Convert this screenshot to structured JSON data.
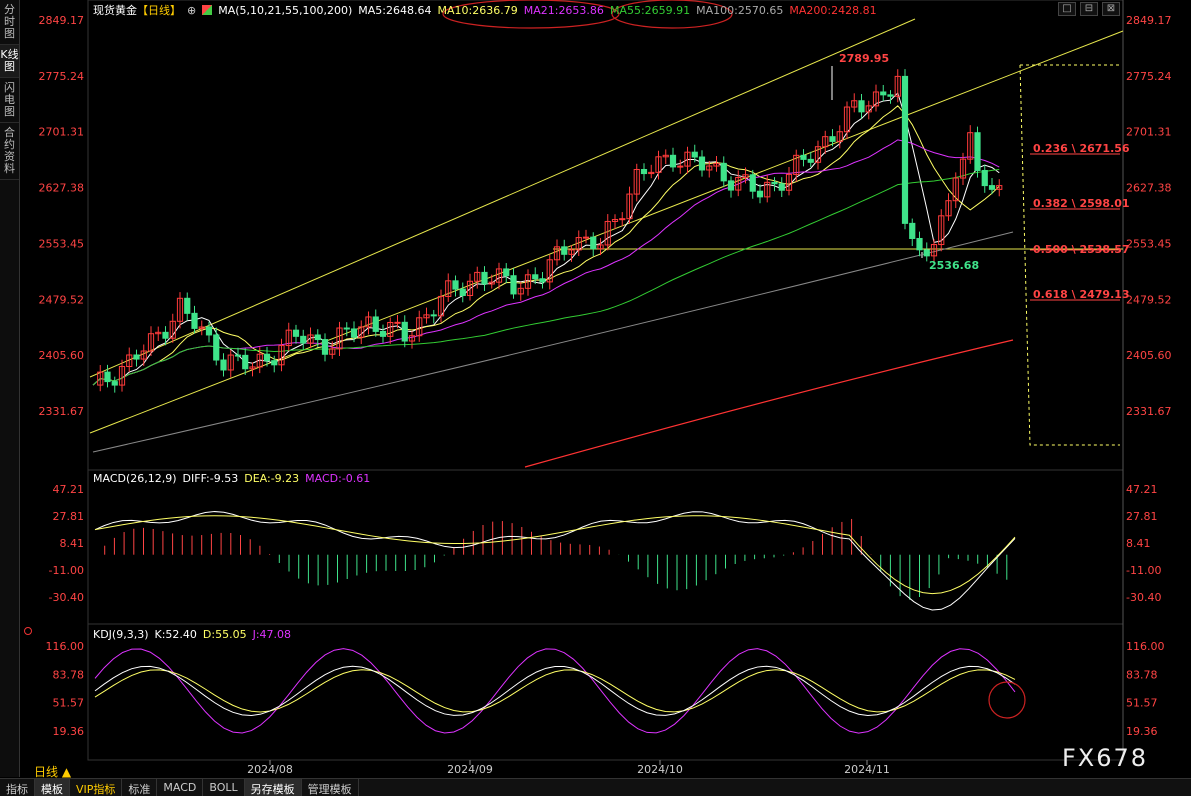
{
  "nav": {
    "items": [
      "分时图",
      "K线图",
      "闪电图",
      "合约资料"
    ]
  },
  "header": {
    "instrument": "现货黄金",
    "period_tag": "【日线】",
    "add_icon": "⊕",
    "ma_label": "MA(5,10,21,55,100,200)",
    "ma5": "MA5:2648.64",
    "ma10": "MA10:2636.79",
    "ma21": "MA21:2653.86",
    "ma55": "MA55:2659.91",
    "ma100": "MA100:2570.65",
    "ma200": "MA200:2428.81"
  },
  "window_buttons": {
    "minimize": "□",
    "restore": "⊟",
    "close": "⊠"
  },
  "price_axis": {
    "ticks": [
      "2849.17",
      "2775.24",
      "2701.31",
      "2627.38",
      "2553.45",
      "2479.52",
      "2405.60",
      "2331.67"
    ]
  },
  "annotations": {
    "high": "2789.95",
    "low": "2536.68",
    "fib": [
      "0.236 \\ 2671.56",
      "0.382 \\ 2598.01",
      "0.500 \\ 2538.57",
      "0.618 \\ 2479.13"
    ]
  },
  "macd": {
    "label": "MACD(26,12,9)",
    "diff": "DIFF:-9.53",
    "dea": "DEA:-9.23",
    "macd": "MACD:-0.61",
    "ticks": [
      "47.21",
      "27.81",
      "8.41",
      "-11.00",
      "-30.40"
    ]
  },
  "kdj": {
    "label": "KDJ(9,3,3)",
    "k": "K:52.40",
    "d": "D:55.05",
    "j": "J:47.08",
    "ticks": [
      "116.00",
      "83.78",
      "51.57",
      "19.36"
    ]
  },
  "x_axis": {
    "labels": [
      "2024/08",
      "2024/09",
      "2024/10",
      "2024/11"
    ]
  },
  "period": "日线 ▲",
  "bottom_tabs": [
    "指标",
    "模板",
    "VIP指标",
    "标准",
    "MACD",
    "BOLL",
    "另存模板",
    "管理模板"
  ],
  "watermark": "FX678",
  "colors": {
    "up": "#ff3b3b",
    "down": "#3fe38a",
    "ma5": "#ffffff",
    "ma10": "#ffff66",
    "ma21": "#dd33ff",
    "ma55": "#33cc33",
    "ma100": "#888888",
    "ma200": "#ff3333",
    "channel": "#e6e64c"
  }
}
